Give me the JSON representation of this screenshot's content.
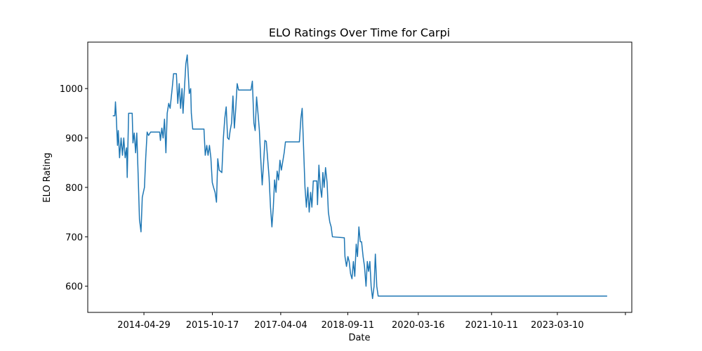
{
  "chart_data": {
    "type": "line",
    "title": "ELO Ratings Over Time for Carpi",
    "x_label": "Date",
    "y_label": "ELO Rating",
    "color": "#1f77b4",
    "xlim": [
      "2013-02-13",
      "2024-10-13"
    ],
    "xticks": [
      "2014-04-29",
      "2015-10-17",
      "2017-04-04",
      "2018-09-11",
      "2020-03-16",
      "2021-10-11",
      "2023-03-10",
      {
        "value": "2024-08-24",
        "label": null
      }
    ],
    "ylim": [
      547,
      1094
    ],
    "yticks": [
      600,
      700,
      800,
      900,
      1000
    ],
    "x": [
      "2013-08-28",
      "2013-09-13",
      "2013-09-18",
      "2013-09-24",
      "2013-10-04",
      "2013-10-10",
      "2013-10-20",
      "2013-11-01",
      "2013-11-12",
      "2013-11-22",
      "2013-12-03",
      "2013-12-14",
      "2013-12-19",
      "2013-12-30",
      "2014-01-27",
      "2014-02-02",
      "2014-02-12",
      "2014-02-23",
      "2014-03-04",
      "2014-03-14",
      "2014-03-25",
      "2014-04-06",
      "2014-04-16",
      "2014-05-03",
      "2014-05-13",
      "2014-05-24",
      "2014-06-04",
      "2014-06-20",
      "2014-08-30",
      "2014-09-05",
      "2014-09-16",
      "2014-09-26",
      "2014-10-07",
      "2014-10-18",
      "2014-10-28",
      "2014-11-09",
      "2014-11-20",
      "2014-12-06",
      "2014-12-17",
      "2015-01-08",
      "2015-01-19",
      "2015-01-30",
      "2015-02-10",
      "2015-02-21",
      "2015-03-01",
      "2015-03-12",
      "2015-03-23",
      "2015-04-03",
      "2015-04-19",
      "2015-04-30",
      "2015-05-05",
      "2015-05-16",
      "2015-08-12",
      "2015-08-22",
      "2015-09-03",
      "2015-09-13",
      "2015-09-24",
      "2015-10-05",
      "2015-10-16",
      "2015-10-26",
      "2015-11-07",
      "2015-11-18",
      "2015-11-28",
      "2015-12-09",
      "2015-12-30",
      "2016-01-11",
      "2016-01-22",
      "2016-02-02",
      "2016-02-13",
      "2016-02-24",
      "2016-03-04",
      "2016-03-15",
      "2016-03-26",
      "2016-04-06",
      "2016-04-17",
      "2016-04-28",
      "2016-05-09",
      "2016-08-14",
      "2016-08-25",
      "2016-09-06",
      "2016-09-16",
      "2016-09-27",
      "2016-10-08",
      "2016-10-19",
      "2016-10-29",
      "2016-11-10",
      "2016-11-21",
      "2016-12-01",
      "2016-12-12",
      "2016-12-22",
      "2017-01-03",
      "2017-01-14",
      "2017-01-25",
      "2017-02-05",
      "2017-02-15",
      "2017-02-26",
      "2017-03-07",
      "2017-03-18",
      "2017-03-29",
      "2017-04-09",
      "2017-05-01",
      "2017-05-11",
      "2017-08-28",
      "2017-09-09",
      "2017-09-19",
      "2017-09-30",
      "2017-10-11",
      "2017-10-22",
      "2017-11-02",
      "2017-11-13",
      "2017-11-24",
      "2017-12-04",
      "2017-12-15",
      "2018-01-12",
      "2018-01-17",
      "2018-01-28",
      "2018-02-08",
      "2018-02-19",
      "2018-02-28",
      "2018-03-10",
      "2018-03-21",
      "2018-04-02",
      "2018-04-12",
      "2018-04-23",
      "2018-05-04",
      "2018-05-14",
      "2018-08-15",
      "2018-08-20",
      "2018-09-01",
      "2018-09-12",
      "2018-09-22",
      "2018-10-03",
      "2018-10-14",
      "2018-10-25",
      "2018-11-05",
      "2018-11-16",
      "2018-11-26",
      "2018-12-07",
      "2018-12-18",
      "2018-12-28",
      "2019-01-09",
      "2019-01-20",
      "2019-02-01",
      "2019-02-11",
      "2019-02-21",
      "2019-03-03",
      "2019-03-13",
      "2019-03-24",
      "2019-04-05",
      "2019-04-15",
      "2019-04-26",
      "2019-05-07",
      "2024-04-03"
    ],
    "values": [
      945,
      945,
      973,
      945,
      885,
      915,
      860,
      900,
      865,
      900,
      860,
      880,
      820,
      950,
      950,
      890,
      910,
      870,
      910,
      830,
      735,
      710,
      780,
      800,
      860,
      912,
      905,
      912,
      912,
      895,
      920,
      900,
      938,
      870,
      950,
      970,
      960,
      1000,
      1030,
      1030,
      970,
      1010,
      960,
      1000,
      950,
      1000,
      1050,
      1068,
      990,
      1000,
      950,
      918,
      918,
      865,
      885,
      865,
      885,
      860,
      810,
      800,
      790,
      770,
      858,
      835,
      830,
      900,
      940,
      963,
      900,
      897,
      915,
      930,
      985,
      920,
      960,
      1010,
      997,
      997,
      1015,
      930,
      915,
      983,
      950,
      915,
      860,
      805,
      850,
      895,
      893,
      860,
      820,
      760,
      720,
      760,
      815,
      790,
      833,
      815,
      855,
      835,
      870,
      892,
      892,
      940,
      960,
      880,
      800,
      760,
      800,
      750,
      790,
      760,
      813,
      813,
      765,
      845,
      800,
      780,
      830,
      800,
      840,
      810,
      750,
      730,
      720,
      700,
      698,
      660,
      640,
      660,
      650,
      625,
      615,
      650,
      620,
      685,
      660,
      720,
      690,
      690,
      660,
      640,
      600,
      650,
      630,
      650,
      600,
      575,
      600,
      665,
      600,
      580,
      580
    ]
  }
}
